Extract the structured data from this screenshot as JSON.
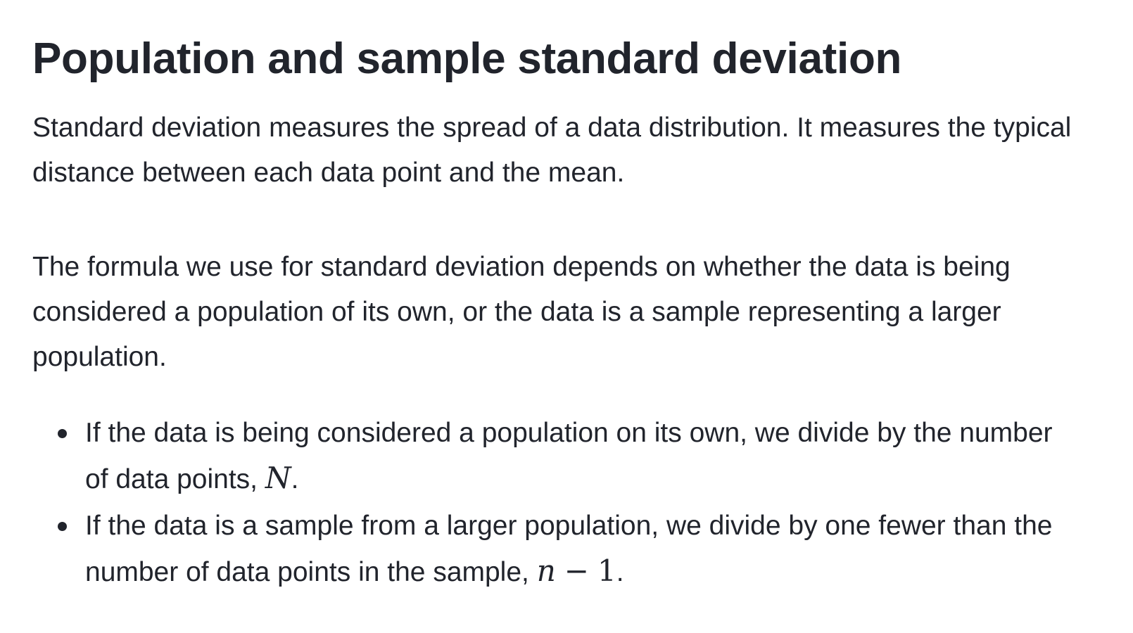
{
  "title": "Population and sample standard deviation",
  "paragraphs": [
    "Standard deviation measures the spread of a data distribution. It measures the typical distance between each data point and the mean.",
    "The formula we use for standard deviation depends on whether the data is being considered a population of its own, or the data is a sample representing a larger population."
  ],
  "bullets": [
    {
      "text": "If the data is being considered a population on its own, we divide by the number of data points, ",
      "math_var": "N",
      "tail": "."
    },
    {
      "text": "If the data is a sample from a larger population, we divide by one fewer than the number of data points in the sample, ",
      "math_var": "n",
      "math_op": "−",
      "math_num": "1",
      "tail": "."
    }
  ]
}
